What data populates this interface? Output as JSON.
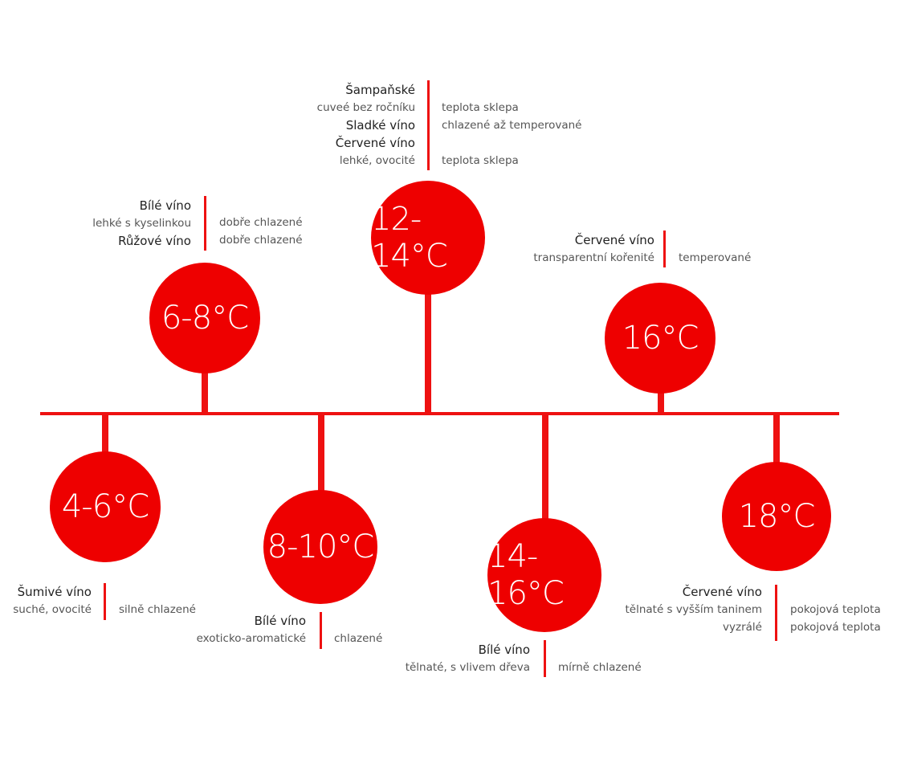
{
  "colors": {
    "accent": "#ee0000",
    "heading": "#222222",
    "sub": "#555555"
  },
  "groups": [
    {
      "temp": "12-14°C",
      "rows": [
        {
          "name": "Šampaňské",
          "desc": "cuveé bez ročníku",
          "value": "teplota sklepa"
        },
        {
          "name": "Sladké víno",
          "desc": "",
          "value": "chlazené až temperované"
        },
        {
          "name": "Červené víno",
          "desc": "lehké, ovocité",
          "value": "teplota sklepa"
        }
      ]
    },
    {
      "temp": "6-8°C",
      "rows": [
        {
          "name": "Bílé víno",
          "desc": "lehké s kyselinkou",
          "value": "dobře chlazené"
        },
        {
          "name": "Růžové víno",
          "desc": "",
          "value": "dobře chlazené"
        }
      ]
    },
    {
      "temp": "16°C",
      "rows": [
        {
          "name": "Červené víno",
          "desc": "transparentní kořenité",
          "value": "temperované"
        }
      ]
    },
    {
      "temp": "4-6°C",
      "rows": [
        {
          "name": "Šumivé víno",
          "desc": "suché, ovocité",
          "value": "silně chlazené"
        }
      ]
    },
    {
      "temp": "8-10°C",
      "rows": [
        {
          "name": "Bílé víno",
          "desc": "exoticko-aromatické",
          "value": "chlazené"
        }
      ]
    },
    {
      "temp": "14-16°C",
      "rows": [
        {
          "name": "Bílé víno",
          "desc": "tělnaté, s vlivem dřeva",
          "value": "mírně chlazené"
        }
      ]
    },
    {
      "temp": "18°C",
      "rows": [
        {
          "name": "Červené víno",
          "desc": "tělnaté s vyšším taninem",
          "value": "pokojová teplota"
        },
        {
          "name": "",
          "desc": "vyzrálé",
          "value": "pokojová teplota"
        }
      ]
    }
  ]
}
